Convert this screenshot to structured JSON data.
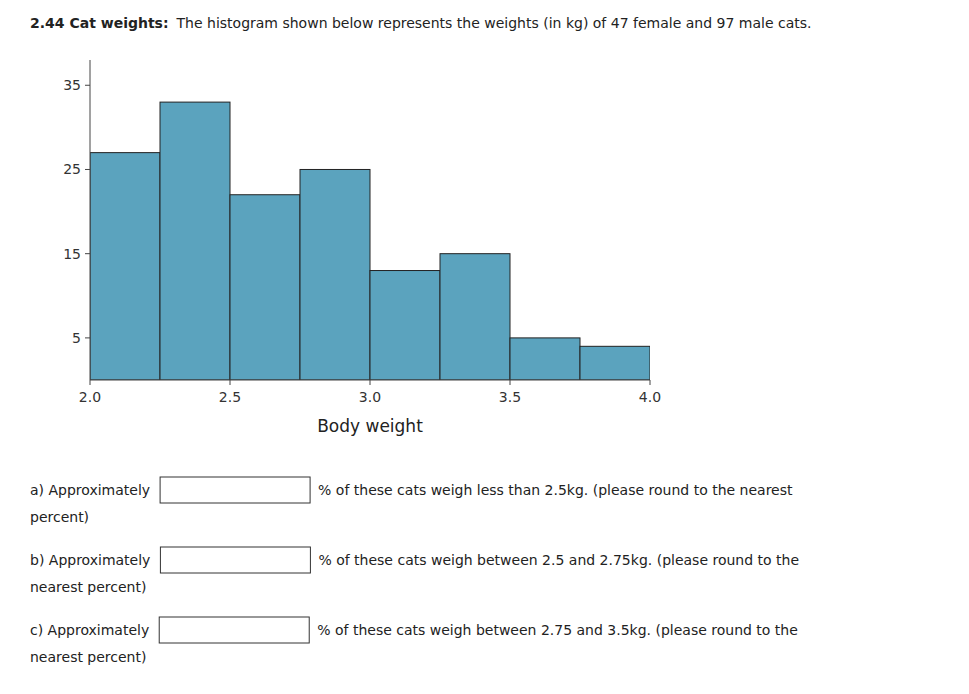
{
  "chart_data": {
    "type": "histogram",
    "title": "2.44 Cat weights:",
    "subtitle": "The histogram shown below represents the weights (in kg) of 47 female and 97 male cats.",
    "x_label": "Body weight",
    "bins": [
      2.0,
      2.25,
      2.5,
      2.75,
      3.0,
      3.25,
      3.5,
      3.75,
      4.0
    ],
    "values": [
      27,
      33,
      22,
      25,
      13,
      15,
      5,
      4
    ],
    "color": "#5ba3be",
    "xlim": [
      2.0,
      4.0
    ],
    "ylim": [
      0,
      38
    ],
    "xticks": [
      {
        "value": 2.0,
        "label": "2.0"
      },
      2.5,
      {
        "value": 3.0,
        "label": "3.0"
      },
      3.5,
      {
        "value": 4.0,
        "label": "4.0"
      }
    ],
    "yticks": [
      5,
      15,
      25,
      35
    ],
    "grid": false,
    "annotations": [
      "a) Approximately",
      "% of these cats weigh less than 2.5kg. (please round to the nearest",
      "percent)",
      "b) Approximately",
      "% of these cats weigh between 2.5 and 2.75kg. (please round to the",
      "nearest percent)",
      "c) Approximately",
      "% of these cats weigh between 2.75 and 3.5kg. (please round to the",
      "nearest percent)"
    ]
  }
}
